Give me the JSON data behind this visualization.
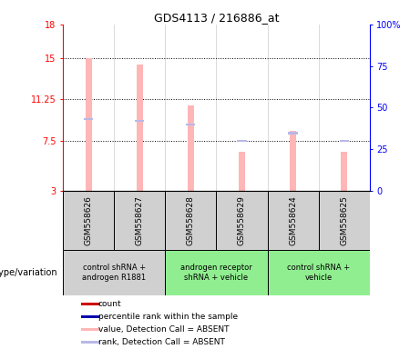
{
  "title": "GDS4113 / 216886_at",
  "samples": [
    "GSM558626",
    "GSM558627",
    "GSM558628",
    "GSM558629",
    "GSM558624",
    "GSM558625"
  ],
  "groups": [
    {
      "label": "control shRNA +\nandrogen R1881",
      "cols": [
        0,
        1
      ],
      "color": "#d0d0d0"
    },
    {
      "label": "androgen receptor\nshRNA + vehicle",
      "cols": [
        2,
        3
      ],
      "color": "#90ee90"
    },
    {
      "label": "control shRNA +\nvehicle",
      "cols": [
        4,
        5
      ],
      "color": "#90ee90"
    }
  ],
  "bar_values": [
    15.0,
    14.4,
    10.7,
    6.5,
    8.4,
    6.5
  ],
  "rank_values": [
    9.5,
    9.3,
    9.0,
    7.5,
    8.2,
    7.5
  ],
  "ylim_left": [
    3,
    18
  ],
  "ylim_right": [
    0,
    100
  ],
  "yticks_left": [
    3,
    7.5,
    11.25,
    15,
    18
  ],
  "yticks_right": [
    0,
    25,
    50,
    75,
    100
  ],
  "ytick_labels_left": [
    "3",
    "7.5",
    "11.25",
    "15",
    "18"
  ],
  "ytick_labels_right": [
    "0",
    "25",
    "50",
    "75",
    "100%"
  ],
  "hlines": [
    7.5,
    11.25,
    15
  ],
  "bar_color_absent": "#ffb6b6",
  "rank_color_absent": "#b8b8e8",
  "bar_width": 0.12,
  "rank_square_size": 0.18,
  "legend_items": [
    {
      "color": "#cc0000",
      "label": "count"
    },
    {
      "color": "#0000aa",
      "label": "percentile rank within the sample"
    },
    {
      "color": "#ffb6b6",
      "label": "value, Detection Call = ABSENT"
    },
    {
      "color": "#b8b8e8",
      "label": "rank, Detection Call = ABSENT"
    }
  ],
  "group_label_prefix": "genotype/variation",
  "sample_box_color": "#d0d0d0",
  "background_color": "#ffffff"
}
